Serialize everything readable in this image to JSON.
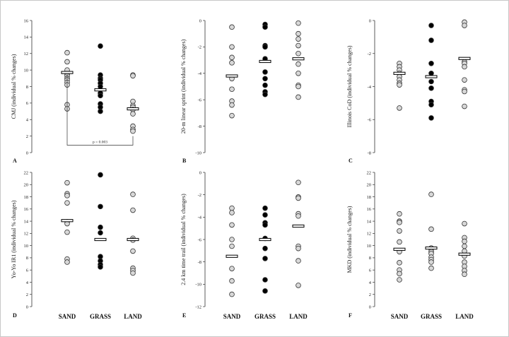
{
  "chart_data": [
    {
      "panel": "A",
      "type": "scatter",
      "ylabel": "CMJ (individual % changes)",
      "ylim": [
        0,
        16
      ],
      "yticks": [
        0,
        2,
        4,
        6,
        8,
        10,
        12,
        14,
        16
      ],
      "categories": [
        "SAND",
        "GRASS",
        "LAND"
      ],
      "fills": [
        "white",
        "black",
        "white"
      ],
      "points": [
        [
          12.1,
          11.0,
          10.0,
          9.5,
          9.3,
          9.0,
          8.8,
          8.5,
          8.2,
          5.8,
          5.3
        ],
        [
          12.9,
          9.4,
          9.0,
          8.8,
          8.4,
          8.0,
          7.2,
          6.9,
          5.9,
          5.5,
          5.0
        ],
        [
          9.4,
          9.3,
          6.2,
          5.7,
          5.5,
          5.2,
          4.7,
          3.2,
          2.8,
          2.6
        ]
      ],
      "means": [
        9.7,
        7.6,
        5.3
      ],
      "annotation": "p = 0.003",
      "show_xlabels": false
    },
    {
      "panel": "B",
      "type": "scatter",
      "ylabel": "20-m linear sprint (individual % changes)",
      "ylim": [
        -10,
        0
      ],
      "yticks": [
        0,
        -2,
        -4,
        -6,
        -8,
        -10
      ],
      "categories": [
        "SAND",
        "GRASS",
        "LAND"
      ],
      "fills": [
        "white",
        "black",
        "white"
      ],
      "points": [
        [
          -0.5,
          -2.0,
          -2.8,
          -3.2,
          -4.4,
          -5.2,
          -6.1,
          -6.4,
          -7.2
        ],
        [
          -0.3,
          -0.5,
          -1.9,
          -2.0,
          -2.9,
          -3.9,
          -4.4,
          -4.9,
          -5.4,
          -5.6
        ],
        [
          -0.2,
          -1.0,
          -1.4,
          -1.9,
          -2.5,
          -3.3,
          -4.0,
          -4.9,
          -5.0,
          -5.8
        ]
      ],
      "means": [
        -4.2,
        -3.1,
        -2.9
      ],
      "show_xlabels": false
    },
    {
      "panel": "C",
      "type": "scatter",
      "ylabel": "Illinois CoD (individual % changes)",
      "ylim": [
        -8,
        0
      ],
      "yticks": [
        0,
        -2,
        -4,
        -6,
        -8
      ],
      "categories": [
        "SAND",
        "GRASS",
        "LAND"
      ],
      "fills": [
        "white",
        "black",
        "white"
      ],
      "points": [
        [
          -2.6,
          -2.8,
          -3.0,
          -3.2,
          -3.4,
          -3.6,
          -3.8,
          -3.9,
          -5.3
        ],
        [
          -0.3,
          -1.2,
          -2.6,
          -3.2,
          -3.7,
          -4.1,
          -4.9,
          -5.1,
          -5.9
        ],
        [
          -0.1,
          -0.3,
          -2.5,
          -2.6,
          -2.8,
          -3.6,
          -4.2,
          -4.3,
          -5.2
        ]
      ],
      "means": [
        -3.2,
        -3.4,
        -2.3
      ],
      "show_xlabels": false
    },
    {
      "panel": "D",
      "type": "scatter",
      "ylabel": "Yo-Yo IR1 (individual % changes)",
      "ylim": [
        0,
        22
      ],
      "yticks": [
        0,
        2,
        4,
        6,
        8,
        10,
        12,
        14,
        16,
        18,
        20,
        22
      ],
      "categories": [
        "SAND",
        "GRASS",
        "LAND"
      ],
      "fills": [
        "white",
        "black",
        "white"
      ],
      "points": [
        [
          20.3,
          18.5,
          18.2,
          17.0,
          13.9,
          13.6,
          12.2,
          7.8,
          7.3
        ],
        [
          21.6,
          16.4,
          13.0,
          12.1,
          8.2,
          7.5,
          6.9,
          6.5
        ],
        [
          18.4,
          15.8,
          11.2,
          10.9,
          9.1,
          6.3,
          5.9,
          5.5
        ]
      ],
      "means": [
        14.1,
        11.0,
        11.0
      ],
      "show_xlabels": true
    },
    {
      "panel": "E",
      "type": "scatter",
      "ylabel": "2.4 km time trail (individual % changes)",
      "ylim": [
        -12,
        0
      ],
      "yticks": [
        0,
        -2,
        -4,
        -6,
        -8,
        -10,
        -12
      ],
      "categories": [
        "SAND",
        "GRASS",
        "LAND"
      ],
      "fills": [
        "white",
        "black",
        "white"
      ],
      "points": [
        [
          -3.2,
          -3.6,
          -4.7,
          -6.0,
          -6.6,
          -8.6,
          -9.7,
          -10.9
        ],
        [
          -3.2,
          -3.8,
          -4.5,
          -4.7,
          -5.9,
          -6.8,
          -7.7,
          -9.6,
          -10.6
        ],
        [
          -0.9,
          -2.2,
          -2.3,
          -3.7,
          -3.9,
          -6.6,
          -6.8,
          -7.9,
          -10.1
        ]
      ],
      "means": [
        -7.5,
        -6.0,
        -4.8
      ],
      "show_xlabels": true
    },
    {
      "panel": "F",
      "type": "scatter",
      "ylabel": "MKD (individual % changes)",
      "ylim": [
        0,
        22
      ],
      "yticks": [
        0,
        2,
        4,
        6,
        8,
        10,
        12,
        14,
        16,
        18,
        20,
        22
      ],
      "categories": [
        "SAND",
        "GRASS",
        "LAND"
      ],
      "fills": [
        "white",
        "white",
        "white"
      ],
      "points": [
        [
          15.2,
          14.0,
          13.8,
          12.4,
          10.6,
          9.0,
          7.2,
          6.0,
          5.4,
          4.4
        ],
        [
          18.4,
          12.7,
          9.6,
          9.4,
          9.0,
          8.7,
          8.1,
          7.7,
          7.3,
          6.3
        ],
        [
          13.6,
          11.3,
          10.7,
          9.9,
          9.1,
          8.3,
          7.3,
          6.6,
          5.9,
          5.3
        ]
      ],
      "means": [
        9.4,
        9.6,
        8.6
      ],
      "show_xlabels": true
    }
  ],
  "colors": {
    "open_fill": "#d8d8d8",
    "filled": "#000000",
    "axis": "#333333"
  }
}
